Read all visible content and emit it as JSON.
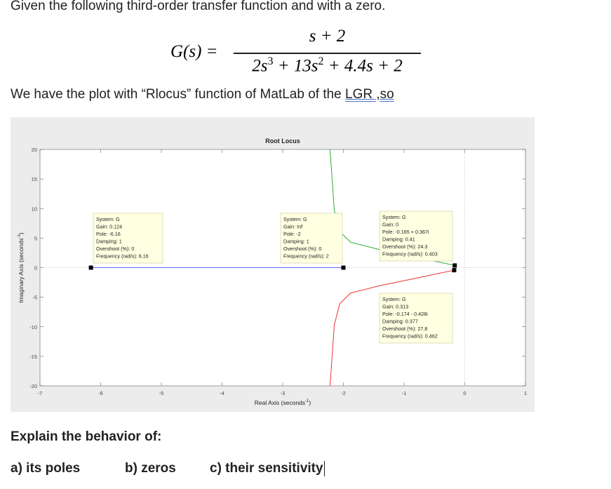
{
  "intro": "Given the following third-order transfer function and with a zero.",
  "equation": {
    "lhs": "G(s) =",
    "numerator": "s + 2",
    "denominator": [
      {
        "base": "2s",
        "sup": "3"
      },
      {
        "base": " + 13s",
        "sup": "2"
      },
      {
        "base": " + 4.4s + 2"
      }
    ]
  },
  "plot_intro": {
    "text": "We have the plot with “Rlocus” function of MatLab of the ",
    "underlined": "LGR ,so"
  },
  "plot": {
    "type": "line",
    "title": "Root Locus",
    "xlabel": {
      "text": "Real Axis (seconds",
      "sup": "-1",
      "end": ")"
    },
    "ylabel": {
      "text": "Imaginary Axis (seconds",
      "sup": "-1",
      "end": ")"
    },
    "xlim": [
      -7,
      1
    ],
    "ylim": [
      -20,
      20
    ],
    "xticks": [
      -7,
      -6,
      -5,
      -4,
      -3,
      -2,
      -1,
      0,
      1
    ],
    "yticks": [
      -20,
      -15,
      -10,
      -5,
      0,
      5,
      10,
      15,
      20
    ],
    "series": [
      {
        "color": "#6666ff",
        "x": [
          -6.16,
          -2
        ],
        "y": [
          0,
          0
        ]
      },
      {
        "color": "#33aa33",
        "x": [
          -2.22,
          -2.15,
          -2.06,
          -1.88,
          -1.42,
          -0.72,
          -0.165
        ],
        "y": [
          20,
          9.7,
          6.1,
          4.3,
          3.1,
          1.6,
          0.367
        ]
      },
      {
        "color": "#ee3333",
        "x": [
          -2.22,
          -2.15,
          -2.06,
          -1.88,
          -1.42,
          -0.72,
          -0.174
        ],
        "y": [
          -20,
          -9.7,
          -6.1,
          -4.3,
          -3.1,
          -1.6,
          -0.428
        ]
      }
    ],
    "datatips": [
      {
        "lines": [
          "System: G",
          "Gain: 0.124",
          "Pole: -6.16",
          "Damping: 1",
          "Overshoot (%): 0",
          "Frequency (rad/s): 6.16"
        ]
      },
      {
        "lines": [
          "System: G",
          "Gain: Inf",
          "Pole: -2",
          "Damping: 1",
          "Overshoot (%): 0",
          "Frequency (rad/s): 2"
        ]
      },
      {
        "lines": [
          "System: G",
          "Gain: 0",
          "Pole: -0.165 + 0.367i",
          "Damping: 0.41",
          "Overshoot (%): 24.3",
          "Frequency (rad/s): 0.403"
        ]
      },
      {
        "lines": [
          "System: G",
          "Gain: 0.313",
          "Pole: -0.174 - 0.428i",
          "Damping: 0.377",
          "Overshoot (%): 27.8",
          "Frequency (rad/s): 0.462"
        ]
      }
    ]
  },
  "question": {
    "heading": "Explain the behavior of:",
    "items": [
      "a) its poles",
      "b) zeros",
      "c) their sensitivity"
    ]
  }
}
